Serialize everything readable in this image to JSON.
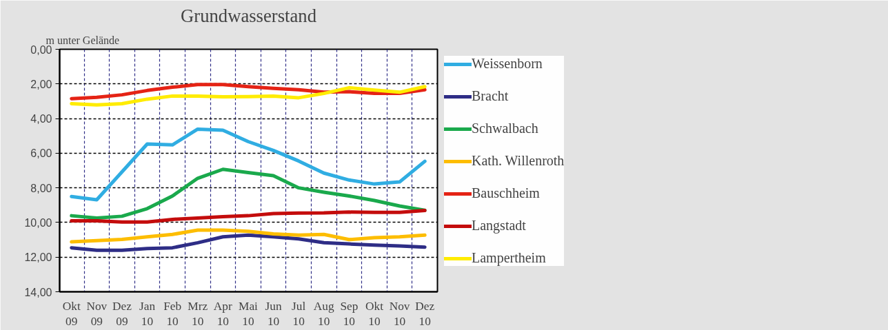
{
  "chart_data": {
    "type": "line",
    "title": "Grundwasserstand",
    "ylabel": "m unter Gelände",
    "categories": [
      "Okt\n09",
      "Nov\n09",
      "Dez\n09",
      "Jan\n10",
      "Feb\n10",
      "Mrz\n10",
      "Apr\n10",
      "Mai\n10",
      "Jun\n10",
      "Jul\n10",
      "Aug\n10",
      "Sep\n10",
      "Okt\n10",
      "Nov\n10",
      "Dez\n10"
    ],
    "series": [
      {
        "name": "Weissenborn",
        "color": "#30ade2",
        "values": [
          8.5,
          8.69,
          7.08,
          5.47,
          5.52,
          4.61,
          4.67,
          5.33,
          5.84,
          6.45,
          7.15,
          7.55,
          7.78,
          7.66,
          6.47
        ]
      },
      {
        "name": "Bracht",
        "color": "#2e2d86",
        "values": [
          11.46,
          11.6,
          11.6,
          11.5,
          11.46,
          11.17,
          10.83,
          10.73,
          10.83,
          10.95,
          11.17,
          11.24,
          11.31,
          11.36,
          11.42
        ]
      },
      {
        "name": "Schwalbach",
        "color": "#1aa94c",
        "values": [
          9.61,
          9.74,
          9.64,
          9.2,
          8.47,
          7.45,
          6.93,
          7.12,
          7.3,
          8.0,
          8.25,
          8.47,
          8.73,
          9.05,
          9.3
        ]
      },
      {
        "name": "Kath. Willenroth",
        "color": "#fdbd00",
        "values": [
          11.12,
          11.05,
          10.98,
          10.83,
          10.69,
          10.44,
          10.44,
          10.51,
          10.66,
          10.73,
          10.69,
          10.99,
          10.88,
          10.83,
          10.73
        ]
      },
      {
        "name": "Bauschheim",
        "color": "#e52315",
        "values": [
          2.85,
          2.77,
          2.63,
          2.38,
          2.19,
          2.04,
          2.04,
          2.16,
          2.26,
          2.34,
          2.48,
          2.45,
          2.55,
          2.55,
          2.34
        ]
      },
      {
        "name": "Langstadt",
        "color": "#c40c0c",
        "values": [
          9.9,
          9.9,
          9.97,
          9.97,
          9.82,
          9.74,
          9.66,
          9.61,
          9.49,
          9.46,
          9.45,
          9.4,
          9.42,
          9.42,
          9.31
        ]
      },
      {
        "name": "Lampertheim",
        "color": "#ffec00",
        "values": [
          3.14,
          3.21,
          3.14,
          2.88,
          2.7,
          2.7,
          2.74,
          2.73,
          2.7,
          2.8,
          2.55,
          2.22,
          2.36,
          2.48,
          2.16
        ]
      }
    ],
    "ylim": [
      14,
      0
    ],
    "yticks": [
      {
        "value": 0,
        "label": "0,00"
      },
      {
        "value": 2,
        "label": "2,00"
      },
      {
        "value": 4,
        "label": "4,00"
      },
      {
        "value": 6,
        "label": "6,00"
      },
      {
        "value": 8,
        "label": "8,00"
      },
      {
        "value": 10,
        "label": "10,00"
      },
      {
        "value": 12,
        "label": "12,00"
      },
      {
        "value": 14,
        "label": "14,00"
      }
    ],
    "grid": true,
    "legend": "right",
    "marker": "none",
    "line_style": "solid"
  }
}
